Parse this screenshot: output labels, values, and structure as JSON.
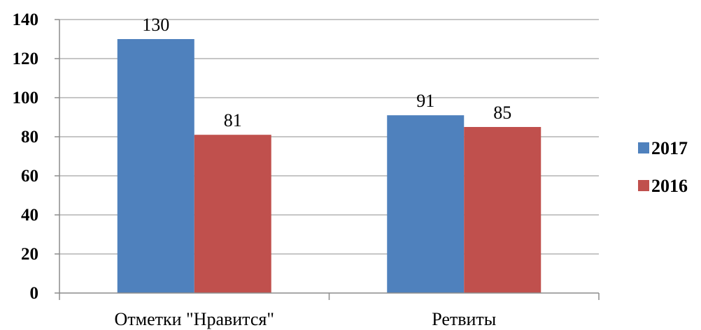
{
  "chart_data": {
    "type": "bar",
    "categories": [
      "Отметки \"Нравится\"",
      "Ретвиты"
    ],
    "series": [
      {
        "name": "2017",
        "values": [
          130,
          91
        ],
        "color": "#4F81BD"
      },
      {
        "name": "2016",
        "values": [
          81,
          85
        ],
        "color": "#C0504D"
      }
    ],
    "ylim": [
      0,
      140
    ],
    "yticks": [
      0,
      20,
      40,
      60,
      80,
      100,
      120,
      140
    ],
    "grid": true,
    "legend_position": "right"
  }
}
